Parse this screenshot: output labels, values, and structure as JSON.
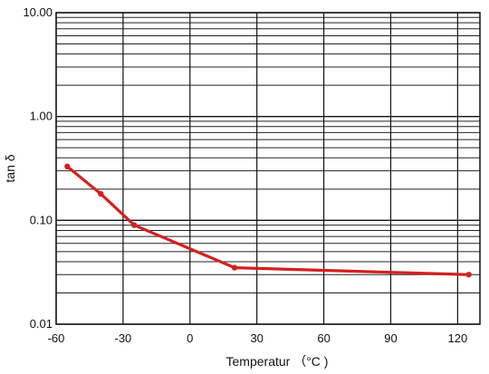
{
  "chart_data": {
    "type": "line",
    "xlabel": "Temperatur （°C )",
    "ylabel": "tan δ",
    "y_scale": "log",
    "xlim": [
      -60,
      130
    ],
    "ylim": [
      0.01,
      10
    ],
    "x_ticks": [
      -60,
      -30,
      0,
      30,
      60,
      90,
      120
    ],
    "x_tick_labels": [
      "-60",
      "-30",
      "0",
      "30",
      "60",
      "90",
      "120"
    ],
    "y_ticks": [
      0.01,
      0.1,
      1,
      10
    ],
    "y_tick_labels": [
      "0.01",
      "0.10",
      "1.00",
      "10.00"
    ],
    "grid": true,
    "series": [
      {
        "color": "#d42020",
        "x": [
          -55,
          -40,
          -25,
          20,
          125
        ],
        "y": [
          0.33,
          0.18,
          0.09,
          0.035,
          0.03
        ]
      }
    ]
  }
}
